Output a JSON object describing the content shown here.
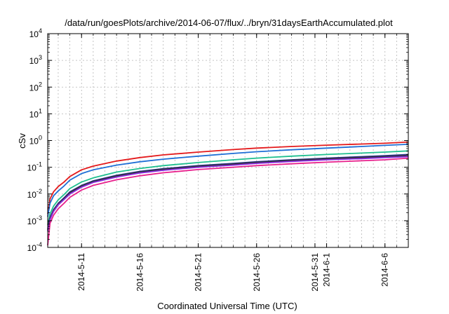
{
  "chart_data": {
    "type": "line",
    "title": "/data/run/goesPlots/archive/2014-06-07/flux/../bryn/31daysEarthAccumulated.plot",
    "xlabel": "Coordinated Universal Time (UTC)",
    "ylabel": "cSv",
    "y_scale": "log",
    "ylim": [
      0.0001,
      10000
    ],
    "y_ticks": [
      {
        "value": 0.0001,
        "base": "10",
        "exp": "-4"
      },
      {
        "value": 0.001,
        "base": "10",
        "exp": "-3"
      },
      {
        "value": 0.01,
        "base": "10",
        "exp": "-2"
      },
      {
        "value": 0.1,
        "base": "10",
        "exp": "-1"
      },
      {
        "value": 1,
        "base": "10",
        "exp": "0"
      },
      {
        "value": 10,
        "base": "10",
        "exp": "1"
      },
      {
        "value": 100,
        "base": "10",
        "exp": "2"
      },
      {
        "value": 1000,
        "base": "10",
        "exp": "3"
      },
      {
        "value": 10000,
        "base": "10",
        "exp": "4"
      }
    ],
    "x_unit": "day of May 2014",
    "xlim": [
      8.1,
      39.0
    ],
    "x_ticks": [
      {
        "value": 11,
        "label": "2014-5-11"
      },
      {
        "value": 16,
        "label": "2014-5-16"
      },
      {
        "value": 21,
        "label": "2014-5-21"
      },
      {
        "value": 26,
        "label": "2014-5-26"
      },
      {
        "value": 31,
        "label": "2014-5-31"
      },
      {
        "value": 32,
        "label": "2014-6-1"
      },
      {
        "value": 37,
        "label": "2014-6-6"
      }
    ],
    "grid": true,
    "x": [
      8.1,
      8.3,
      8.6,
      9.0,
      9.5,
      10.0,
      11.0,
      12.0,
      14.0,
      16.0,
      18.0,
      21.0,
      24.0,
      26.0,
      29.0,
      32.0,
      35.0,
      37.0,
      39.0
    ],
    "series": [
      {
        "color": "#e41a1c",
        "values": [
          0.0018,
          0.0065,
          0.012,
          0.019,
          0.028,
          0.045,
          0.08,
          0.11,
          0.17,
          0.23,
          0.29,
          0.37,
          0.46,
          0.52,
          0.6,
          0.67,
          0.74,
          0.79,
          0.88
        ]
      },
      {
        "color": "#1f6fd6",
        "values": [
          0.0014,
          0.0045,
          0.0085,
          0.013,
          0.02,
          0.033,
          0.058,
          0.08,
          0.12,
          0.16,
          0.2,
          0.26,
          0.33,
          0.38,
          0.45,
          0.52,
          0.6,
          0.66,
          0.72
        ]
      },
      {
        "color": "#1fbf8f",
        "values": [
          0.0007,
          0.0018,
          0.0035,
          0.006,
          0.0095,
          0.016,
          0.028,
          0.04,
          0.066,
          0.09,
          0.115,
          0.15,
          0.19,
          0.22,
          0.26,
          0.3,
          0.34,
          0.37,
          0.41
        ]
      },
      {
        "color": "#2b2f8a",
        "values": [
          0.0005,
          0.0013,
          0.0026,
          0.0045,
          0.0072,
          0.012,
          0.021,
          0.031,
          0.05,
          0.07,
          0.088,
          0.115,
          0.14,
          0.16,
          0.19,
          0.22,
          0.25,
          0.27,
          0.3
        ]
      },
      {
        "color": "#333333",
        "values": [
          0.00045,
          0.0012,
          0.0024,
          0.0042,
          0.0067,
          0.011,
          0.02,
          0.029,
          0.047,
          0.066,
          0.083,
          0.108,
          0.13,
          0.15,
          0.18,
          0.205,
          0.23,
          0.25,
          0.27
        ]
      },
      {
        "color": "#8a2be2",
        "values": [
          0.0004,
          0.0011,
          0.0022,
          0.0039,
          0.0062,
          0.01,
          0.018,
          0.027,
          0.043,
          0.061,
          0.077,
          0.1,
          0.12,
          0.14,
          0.165,
          0.19,
          0.21,
          0.23,
          0.25
        ]
      },
      {
        "color": "#e8208c",
        "values": [
          0.00012,
          0.0008,
          0.0016,
          0.0028,
          0.0045,
          0.0075,
          0.014,
          0.021,
          0.034,
          0.048,
          0.062,
          0.082,
          0.1,
          0.115,
          0.135,
          0.155,
          0.175,
          0.19,
          0.22
        ]
      }
    ]
  }
}
